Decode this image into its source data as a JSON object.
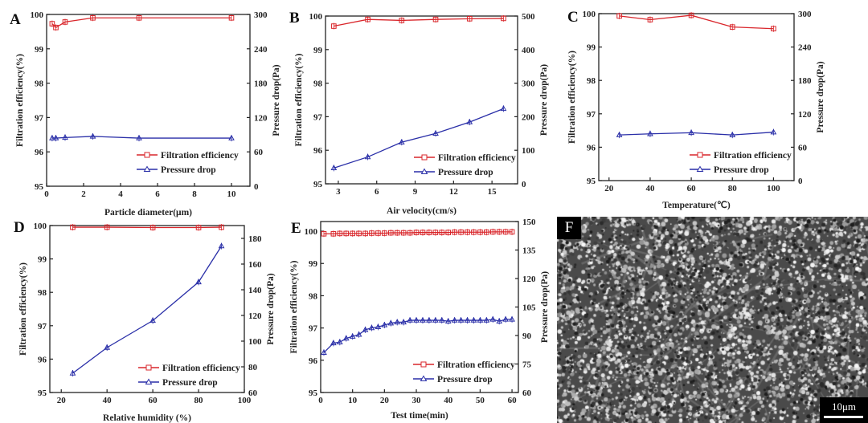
{
  "colors": {
    "efficiency": "#d9262b",
    "pressure": "#2a2fa8",
    "axis": "#222222"
  },
  "legend": {
    "efficiency": "Filtration efficiency",
    "pressure": "Pressure drop"
  },
  "chart_data": [
    {
      "panel": "A",
      "type": "line",
      "xlabel": "Particle diameter(μm)",
      "ylabel": "Filtration efficiency(%)",
      "y2label": "Pressure drop(Pa)",
      "xlim": [
        0,
        11
      ],
      "xticks": [
        "0",
        "2",
        "4",
        "6",
        "8",
        "10"
      ],
      "xtick_values": [
        0,
        2,
        4,
        6,
        8,
        10
      ],
      "ylim": [
        95,
        100
      ],
      "yticks": [
        "95",
        "96",
        "97",
        "98",
        "99",
        "100"
      ],
      "y2lim": [
        0,
        300
      ],
      "y2ticks": [
        "0",
        "60",
        "120",
        "180",
        "240",
        "300"
      ],
      "x": [
        0.3,
        0.5,
        1.0,
        2.5,
        5.0,
        10.0
      ],
      "series": [
        {
          "name": "Filtration efficiency",
          "axis": "left",
          "values": [
            99.73,
            99.62,
            99.78,
            99.9,
            99.9,
            99.9
          ]
        },
        {
          "name": "Pressure drop",
          "axis": "right",
          "values": [
            84,
            84,
            85,
            87,
            84,
            84
          ]
        }
      ],
      "legend_position": "bottom-right"
    },
    {
      "panel": "B",
      "type": "line",
      "xlabel": "Air velocity(cm/s)",
      "ylabel": "Filtration efficiency(%)",
      "y2label": "Pressure drop(Pa)",
      "xlim": [
        2,
        17
      ],
      "xticks": [
        "3",
        "6",
        "9",
        "12",
        "15"
      ],
      "xtick_values": [
        3,
        6,
        9,
        12,
        15
      ],
      "ylim": [
        95,
        100
      ],
      "yticks": [
        "95",
        "96",
        "97",
        "98",
        "99",
        "100"
      ],
      "y2lim": [
        0,
        500
      ],
      "y2ticks": [
        "0",
        "100",
        "200",
        "300",
        "400",
        "500"
      ],
      "x": [
        2.65,
        5.3,
        7.95,
        10.6,
        13.25,
        15.9
      ],
      "series": [
        {
          "name": "Filtration efficiency",
          "axis": "left",
          "values": [
            99.7,
            99.9,
            99.87,
            99.9,
            99.92,
            99.93
          ]
        },
        {
          "name": "Pressure drop",
          "axis": "right",
          "values": [
            47,
            80,
            124,
            150,
            184,
            224
          ]
        }
      ],
      "legend_position": "bottom-right"
    },
    {
      "panel": "C",
      "type": "line",
      "xlabel": "Temperature(℃)",
      "ylabel": "Filtration efficiency(%)",
      "y2label": "Pressure drop(Pa)",
      "xlim": [
        15,
        110
      ],
      "xticks": [
        "20",
        "40",
        "60",
        "80",
        "100"
      ],
      "xtick_values": [
        20,
        40,
        60,
        80,
        100
      ],
      "ylim": [
        95,
        100
      ],
      "yticks": [
        "95",
        "96",
        "97",
        "98",
        "99",
        "100"
      ],
      "y2lim": [
        0,
        300
      ],
      "y2ticks": [
        "0",
        "60",
        "120",
        "180",
        "240",
        "300"
      ],
      "x": [
        25,
        40,
        60,
        80,
        100
      ],
      "series": [
        {
          "name": "Filtration efficiency",
          "axis": "left",
          "values": [
            99.93,
            99.82,
            99.95,
            99.6,
            99.55
          ]
        },
        {
          "name": "Pressure drop",
          "axis": "right",
          "values": [
            82,
            84,
            86,
            82,
            87
          ]
        }
      ],
      "legend_position": "bottom-right"
    },
    {
      "panel": "D",
      "type": "line",
      "xlabel": "Relative humidity (%)",
      "ylabel": "Filtration efficiency(%)",
      "y2label": "Pressure drop(Pa)",
      "xlim": [
        15,
        100
      ],
      "xticks": [
        "20",
        "40",
        "60",
        "80",
        "100"
      ],
      "xtick_values": [
        20,
        40,
        60,
        80,
        100
      ],
      "ylim": [
        95,
        100
      ],
      "yticks": [
        "95",
        "96",
        "97",
        "98",
        "99",
        "100"
      ],
      "y2lim": [
        60,
        190
      ],
      "y2ticks": [
        "60",
        "80",
        "100",
        "120",
        "140",
        "160",
        "180"
      ],
      "y2tick_values": [
        60,
        80,
        100,
        120,
        140,
        160,
        180
      ],
      "x": [
        25,
        40,
        60,
        80,
        90
      ],
      "series": [
        {
          "name": "Filtration efficiency",
          "axis": "left",
          "values": [
            99.95,
            99.95,
            99.94,
            99.94,
            99.95
          ]
        },
        {
          "name": "Pressure drop",
          "axis": "right",
          "values": [
            75,
            95,
            116,
            146,
            174
          ]
        }
      ],
      "legend_position": "bottom-right"
    },
    {
      "panel": "E",
      "type": "line",
      "xlabel": "Test time(min)",
      "ylabel": "Filtration efficiency(%)",
      "y2label": "Pressure drop(Pa)",
      "xlim": [
        0,
        62
      ],
      "xticks": [
        "0",
        "10",
        "20",
        "30",
        "40",
        "50",
        "60"
      ],
      "xtick_values": [
        0,
        10,
        20,
        30,
        40,
        50,
        60
      ],
      "ylim": [
        95,
        100.3
      ],
      "yticks": [
        "95",
        "96",
        "97",
        "98",
        "99",
        "100"
      ],
      "ytick_values": [
        95,
        96,
        97,
        98,
        99,
        100
      ],
      "y2lim": [
        60,
        150
      ],
      "y2ticks": [
        "60",
        "75",
        "90",
        "105",
        "120",
        "135",
        "150"
      ],
      "x": [
        1,
        4,
        6,
        8,
        10,
        12,
        14,
        16,
        18,
        20,
        22,
        24,
        26,
        28,
        30,
        32,
        34,
        36,
        38,
        40,
        42,
        44,
        46,
        48,
        50,
        52,
        54,
        56,
        58,
        60
      ],
      "series": [
        {
          "name": "Filtration efficiency",
          "axis": "left",
          "values": [
            99.92,
            99.92,
            99.93,
            99.93,
            99.93,
            99.93,
            99.93,
            99.94,
            99.94,
            99.94,
            99.95,
            99.95,
            99.95,
            99.95,
            99.96,
            99.96,
            99.96,
            99.96,
            99.96,
            99.96,
            99.97,
            99.97,
            99.97,
            99.97,
            99.97,
            99.97,
            99.98,
            99.98,
            99.98,
            99.98
          ]
        },
        {
          "name": "Pressure drop",
          "axis": "right",
          "values": [
            81,
            86,
            86.5,
            88.5,
            89.5,
            90.5,
            93,
            94,
            94.5,
            95.5,
            96.5,
            97,
            97,
            98,
            98,
            98,
            98,
            98,
            98,
            97.5,
            98,
            98,
            98,
            98,
            98,
            98,
            98.5,
            97.5,
            98.5,
            98.5
          ]
        }
      ],
      "legend_position": "bottom-right"
    }
  ],
  "panel_f": {
    "letter": "F",
    "scale_bar": "10μm"
  }
}
